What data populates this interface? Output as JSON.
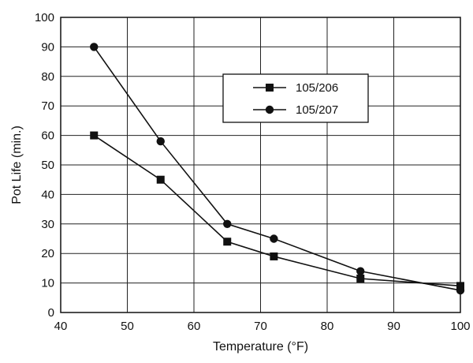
{
  "chart_data": {
    "type": "line",
    "title": "",
    "xlabel": "Temperature (°F)",
    "ylabel": "Pot Life (min.)",
    "xlim": [
      40,
      100
    ],
    "ylim": [
      0,
      100
    ],
    "xticks": [
      40,
      50,
      60,
      70,
      80,
      90,
      100
    ],
    "yticks": [
      0,
      10,
      20,
      30,
      40,
      50,
      60,
      70,
      80,
      90,
      100
    ],
    "grid": true,
    "legend_position": "upper-right",
    "series": [
      {
        "name": "105/206",
        "marker": "square",
        "color": "#111111",
        "x": [
          45,
          55,
          65,
          72,
          85,
          100
        ],
        "y": [
          60,
          45,
          24,
          19,
          11.5,
          9
        ]
      },
      {
        "name": "105/207",
        "marker": "circle",
        "color": "#111111",
        "x": [
          45,
          55,
          65,
          72,
          85,
          100
        ],
        "y": [
          90,
          58,
          30,
          25,
          14,
          7.5
        ]
      }
    ]
  }
}
